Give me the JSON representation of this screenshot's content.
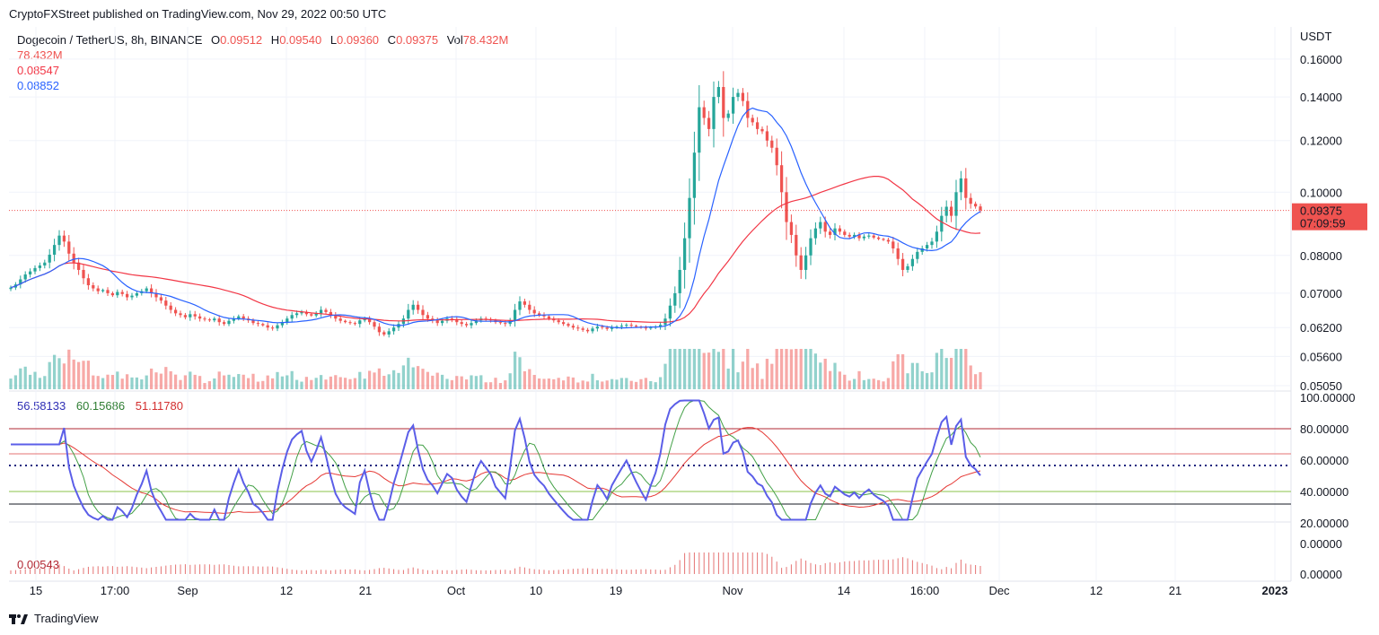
{
  "header": {
    "published": "CryptoFXStreet published on TradingView.com, Nov 29, 2022 00:50 UTC"
  },
  "legend": {
    "symbol": "Dogecoin / TetherUS, 8h, BINANCE",
    "o_label": "O",
    "o_value": "0.09512",
    "h_label": "H",
    "h_value": "0.09540",
    "l_label": "L",
    "l_value": "0.09360",
    "c_label": "C",
    "c_value": "0.09375",
    "vol_label": "Vol",
    "vol_value": "78.432M",
    "line1": "78.432M",
    "line2": "0.08547",
    "line3": "0.08852"
  },
  "osc_legend": {
    "v1": "56.58133",
    "v2": "60.15686",
    "v3": "51.11780"
  },
  "hist_legend": {
    "v1": "0.00543"
  },
  "footer": {
    "brand": "TradingView"
  },
  "colors": {
    "up": "#26a69a",
    "down": "#ef5350",
    "ma_blue": "#2962ff",
    "ma_red": "#f23645",
    "rsi": "#5b5ee8",
    "rsi_green": "#43a047"
  },
  "chart_data": [
    {
      "type": "candlestick",
      "title": "Dogecoin / TetherUS, 8h, BINANCE",
      "y_axis_unit": "USDT",
      "y_ticks": [
        "0.16000",
        "0.14000",
        "0.12000",
        "0.10000",
        "0.08000",
        "0.07000",
        "0.06200",
        "0.05600",
        "0.05050"
      ],
      "x_ticks": [
        "15",
        "17:00",
        "Sep",
        "12",
        "21",
        "Oct",
        "10",
        "19",
        "Nov",
        "14",
        "16:00",
        "Dec",
        "12",
        "21",
        "2023"
      ],
      "last_price": "0.09375",
      "countdown": "07:09:59",
      "close_series": [
        0.0714,
        0.0722,
        0.0735,
        0.0748,
        0.0756,
        0.0765,
        0.0772,
        0.078,
        0.0802,
        0.083,
        0.0858,
        0.084,
        0.0805,
        0.078,
        0.076,
        0.0738,
        0.072,
        0.0712,
        0.0705,
        0.0708,
        0.07,
        0.0695,
        0.0703,
        0.0698,
        0.069,
        0.0694,
        0.07,
        0.0705,
        0.0712,
        0.07,
        0.069,
        0.0682,
        0.067,
        0.066,
        0.0652,
        0.0648,
        0.0643,
        0.065,
        0.0645,
        0.064,
        0.0638,
        0.0636,
        0.064,
        0.0632,
        0.0628,
        0.0635,
        0.064,
        0.0645,
        0.064,
        0.0636,
        0.063,
        0.0628,
        0.0625,
        0.062,
        0.0618,
        0.0625,
        0.0632,
        0.064,
        0.0648,
        0.0652,
        0.0655,
        0.065,
        0.0647,
        0.0652,
        0.066,
        0.0655,
        0.0648,
        0.064,
        0.0635,
        0.0632,
        0.063,
        0.0628,
        0.0636,
        0.064,
        0.0632,
        0.0622,
        0.061,
        0.0605,
        0.0612,
        0.062,
        0.0628,
        0.064,
        0.066,
        0.0672,
        0.066,
        0.0648,
        0.064,
        0.0636,
        0.063,
        0.0635,
        0.064,
        0.0638,
        0.0632,
        0.0628,
        0.0625,
        0.063,
        0.0636,
        0.064,
        0.0638,
        0.0636,
        0.0632,
        0.063,
        0.0628,
        0.0636,
        0.066,
        0.068,
        0.0672,
        0.066,
        0.0652,
        0.0648,
        0.0645,
        0.064,
        0.0636,
        0.0632,
        0.0628,
        0.0624,
        0.062,
        0.0618,
        0.0615,
        0.0612,
        0.0618,
        0.0622,
        0.062,
        0.0617,
        0.062,
        0.0622,
        0.0624,
        0.0626,
        0.0624,
        0.0622,
        0.062,
        0.0618,
        0.062,
        0.0622,
        0.0626,
        0.064,
        0.067,
        0.07,
        0.076,
        0.085,
        0.098,
        0.115,
        0.135,
        0.13,
        0.125,
        0.14,
        0.145,
        0.13,
        0.132,
        0.14,
        0.142,
        0.138,
        0.13,
        0.128,
        0.125,
        0.124,
        0.12,
        0.117,
        0.11,
        0.1,
        0.09,
        0.086,
        0.08,
        0.076,
        0.08,
        0.085,
        0.088,
        0.09,
        0.087,
        0.086,
        0.088,
        0.087,
        0.086,
        0.0855,
        0.086,
        0.085,
        0.0855,
        0.0858,
        0.0852,
        0.0848,
        0.0845,
        0.084,
        0.082,
        0.079,
        0.076,
        0.077,
        0.079,
        0.081,
        0.082,
        0.083,
        0.084,
        0.087,
        0.092,
        0.095,
        0.092,
        0.1,
        0.105,
        0.098,
        0.096,
        0.0951,
        0.0938
      ],
      "ma_red_last": 0.08547,
      "ma_blue_last": 0.08852
    },
    {
      "type": "line",
      "name": "oscillator",
      "y_ticks": [
        "100.00000",
        "80.00000",
        "60.00000",
        "40.00000",
        "20.00000"
      ],
      "ylim": [
        20,
        100
      ],
      "bands": [
        80,
        64,
        40,
        32
      ],
      "dotted_level": 56.58133,
      "values_last": [
        56.58133,
        60.15686,
        51.1178
      ]
    },
    {
      "type": "bar",
      "name": "histogram",
      "y_ticks": [
        "0.00000",
        "0.00000"
      ],
      "last_value": 0.00543
    }
  ]
}
